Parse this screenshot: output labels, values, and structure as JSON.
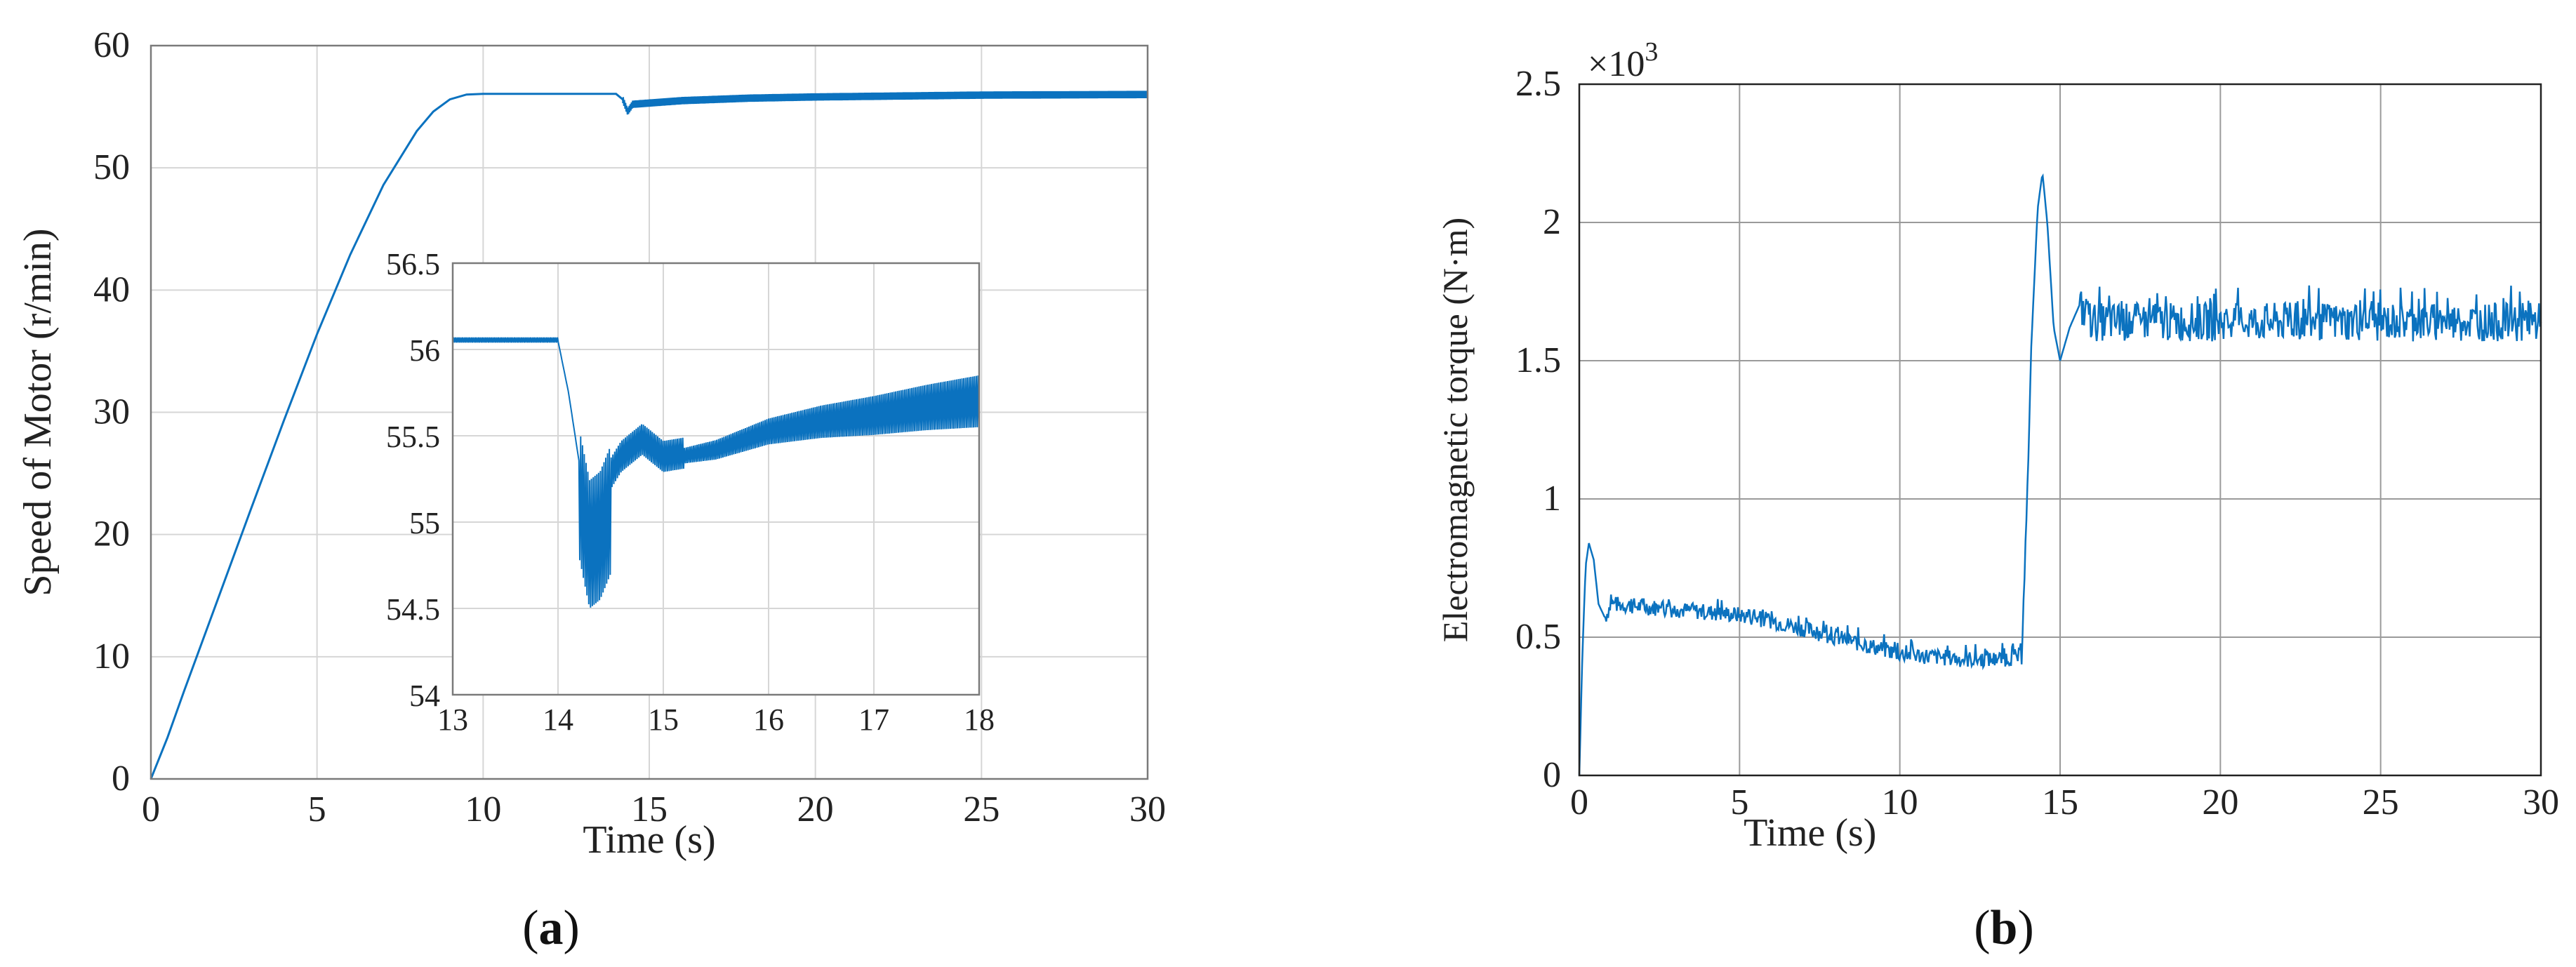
{
  "figure": {
    "caption_a_open": "(",
    "caption_a_letter": "a",
    "caption_a_close": ")",
    "caption_b_open": "(",
    "caption_b_letter": "b",
    "caption_b_close": ")"
  },
  "chart_data": [
    {
      "id": "a",
      "type": "line",
      "title": "",
      "xlabel": "Time (s)",
      "ylabel": "Speed of Motor (r/min)",
      "xlim": [
        0,
        30
      ],
      "ylim": [
        0,
        60
      ],
      "xticks": [
        0,
        5,
        10,
        15,
        20,
        25,
        30
      ],
      "yticks": [
        0,
        10,
        20,
        30,
        40,
        50,
        60
      ],
      "grid": true,
      "color": "#0b72bf",
      "series": [
        {
          "x": [
            0,
            0.5,
            1,
            2,
            3,
            4,
            5,
            6,
            7,
            8,
            8.5,
            9,
            9.5,
            10,
            12,
            14,
            14.2,
            14.35,
            14.5,
            15,
            16,
            18,
            20,
            25,
            30
          ],
          "y": [
            0,
            3.4,
            7.2,
            14.6,
            22.0,
            29.3,
            36.4,
            42.9,
            48.6,
            53.0,
            54.6,
            55.6,
            56.0,
            56.05,
            56.05,
            56.05,
            55.6,
            54.6,
            55.2,
            55.3,
            55.5,
            55.7,
            55.8,
            55.95,
            56.0
          ],
          "oscillation_from_x": 14.2,
          "oscillation_amplitude": 0.3
        }
      ],
      "inset": {
        "xlim": [
          13,
          18
        ],
        "ylim": [
          54,
          56.5
        ],
        "xticks": [
          13,
          14,
          15,
          16,
          17,
          18
        ],
        "yticks": [
          54,
          54.5,
          55,
          55.5,
          56,
          56.5
        ],
        "series": [
          {
            "x": [
              13,
              14,
              14.1,
              14.2,
              14.3,
              14.4,
              14.5,
              14.6,
              14.8,
              15,
              15.5,
              16,
              16.5,
              17,
              17.5,
              18
            ],
            "y": [
              56.05,
              56.05,
              55.75,
              55.35,
              55.05,
              55.1,
              55.25,
              55.35,
              55.45,
              55.35,
              55.4,
              55.5,
              55.55,
              55.58,
              55.62,
              55.65
            ],
            "ripple": [
              {
                "x": [
                  13,
                  14
                ],
                "amplitude": 0.02
              },
              {
                "x": [
                  14.2,
                  14.5
                ],
                "amplitude": 0.55
              },
              {
                "x": [
                  14.5,
                  15.2
                ],
                "amplitude": 0.12
              },
              {
                "x": [
                  15.2,
                  18
                ],
                "amplitude_start": 0.06,
                "amplitude_end": 0.2
              }
            ]
          }
        ]
      }
    },
    {
      "id": "b",
      "type": "line",
      "title": "",
      "xlabel": "Time (s)",
      "ylabel": "Electromagnetic torque (N·m)",
      "multiplier": "×10",
      "multiplier_exp": "3",
      "xlim": [
        0,
        30
      ],
      "ylim": [
        0,
        2.5
      ],
      "xticks": [
        0,
        5,
        10,
        15,
        20,
        25,
        30
      ],
      "ytick_values": [
        0,
        0.5,
        1,
        1.5,
        2,
        2.5
      ],
      "ytick_labels": [
        "0",
        "0.5",
        "1",
        "1.5",
        "2",
        "2.5"
      ],
      "grid": true,
      "color": "#0b72bf",
      "series": [
        {
          "x": [
            0,
            0.1,
            0.2,
            0.3,
            0.45,
            0.6,
            0.8,
            1,
            2,
            3,
            4,
            5,
            6,
            7,
            8,
            9,
            10,
            11,
            12,
            13,
            13.8,
            14.0,
            14.1,
            14.3,
            14.45,
            14.6,
            14.8,
            15.0,
            15.3,
            15.6,
            16,
            18,
            20,
            25,
            30
          ],
          "y": [
            0,
            0.45,
            0.76,
            0.84,
            0.78,
            0.62,
            0.57,
            0.62,
            0.61,
            0.6,
            0.59,
            0.58,
            0.56,
            0.53,
            0.5,
            0.47,
            0.44,
            0.43,
            0.42,
            0.42,
            0.43,
            1.1,
            1.55,
            2.05,
            2.18,
            2.0,
            1.62,
            1.5,
            1.62,
            1.7,
            1.64,
            1.64,
            1.64,
            1.64,
            1.64
          ],
          "noise": [
            {
              "x": [
                0.8,
                14.0
              ],
              "amplitude": 0.03
            },
            {
              "x": [
                15.6,
                30
              ],
              "amplitude": 0.07
            }
          ]
        }
      ]
    }
  ]
}
